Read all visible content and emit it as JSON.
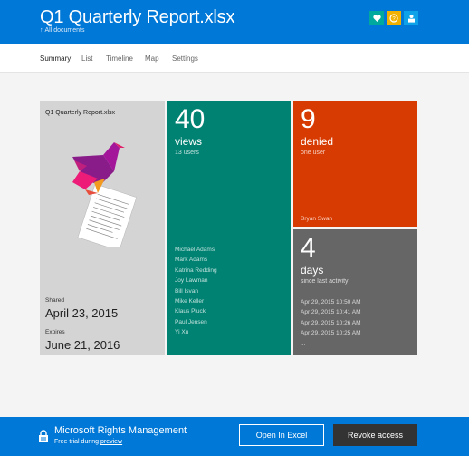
{
  "header": {
    "title": "Q1 Quarterly Report.xlsx",
    "back_label": "All documents",
    "icons": [
      {
        "name": "heart-icon",
        "color": "#00a99d"
      },
      {
        "name": "help-icon",
        "color": "#f2b000"
      },
      {
        "name": "user-icon",
        "color": "#0ea3e8"
      }
    ]
  },
  "tabs": [
    "Summary",
    "List",
    "Timeline",
    "Map",
    "Settings"
  ],
  "document_tile": {
    "filename": "Q1 Quarterly Report.xlsx",
    "shared_label": "Shared",
    "shared_date": "April 23, 2015",
    "expires_label": "Expires",
    "expires_date": "June 21, 2016"
  },
  "views_tile": {
    "count": "40",
    "unit": "views",
    "sub": "13 users",
    "names": [
      "Michael Adams",
      "Mark Adams",
      "Katrina Redding",
      "Joy Lawman",
      "Bill Isvan",
      "Mike Keller",
      "Klaus Pluck",
      "Paul Jensen",
      "Yi Xu",
      "..."
    ]
  },
  "denied_tile": {
    "count": "9",
    "unit": "denied",
    "sub": "one user",
    "name": "Bryan Swan"
  },
  "days_tile": {
    "count": "4",
    "unit": "days",
    "sub": "since last activity",
    "activity": [
      "Apr 29, 2015 10:50 AM",
      "Apr 29, 2015 10:41 AM",
      "Apr 29, 2015 10:26 AM",
      "Apr 29, 2015 10:25 AM",
      "..."
    ]
  },
  "footer": {
    "brand": "Microsoft Rights Management",
    "trial_prefix": "Free trial during",
    "trial_link": "preview",
    "open_button": "Open In Excel",
    "revoke_button": "Revoke access"
  },
  "colors": {
    "accent": "#0078d7",
    "views": "#008272",
    "denied": "#d83b01",
    "days": "#666666",
    "doc": "#d4d4d4"
  }
}
